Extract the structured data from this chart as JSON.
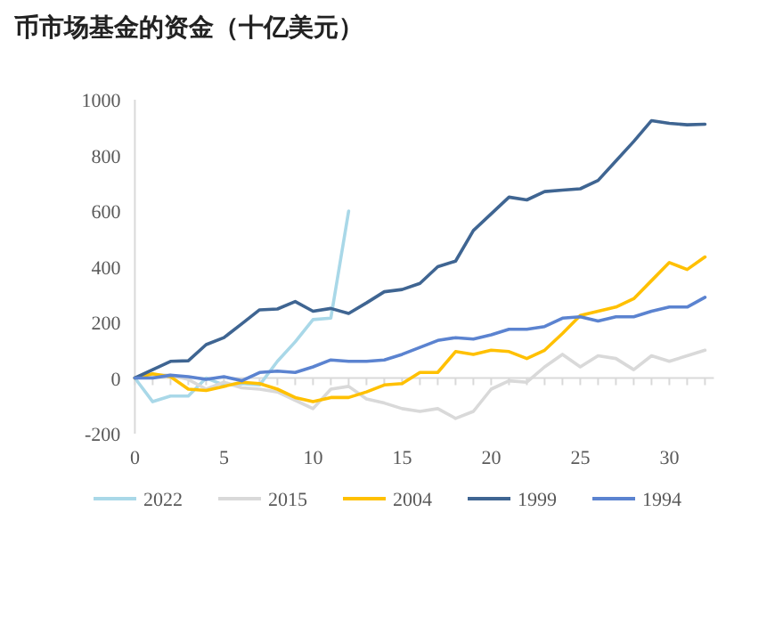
{
  "chart_data": {
    "type": "line",
    "title": "币市场基金的资金（十亿美元）",
    "x": [
      0,
      1,
      2,
      3,
      4,
      5,
      6,
      7,
      8,
      9,
      10,
      11,
      12,
      13,
      14,
      15,
      16,
      17,
      18,
      19,
      20,
      21,
      22,
      23,
      24,
      25,
      26,
      27,
      28,
      29,
      30,
      31,
      32
    ],
    "series": [
      {
        "name": "2022",
        "color": "#a9d8e8",
        "values": [
          0,
          -85,
          -65,
          -65,
          0,
          -25,
          -20,
          -25,
          60,
          130,
          210,
          215,
          600,
          null,
          null,
          null,
          null,
          null,
          null,
          null,
          null,
          null,
          null,
          null,
          null,
          null,
          null,
          null,
          null,
          null,
          null,
          null,
          null
        ]
      },
      {
        "name": "2015",
        "color": "#d9d9d9",
        "values": [
          0,
          10,
          10,
          -5,
          -40,
          -15,
          -35,
          -40,
          -50,
          -80,
          -110,
          -40,
          -30,
          -75,
          -90,
          -110,
          -120,
          -110,
          -145,
          -120,
          -40,
          -10,
          -15,
          40,
          85,
          40,
          80,
          70,
          30,
          80,
          60,
          80,
          100
        ]
      },
      {
        "name": "2004",
        "color": "#ffc000",
        "values": [
          0,
          15,
          5,
          -40,
          -45,
          -30,
          -15,
          -20,
          -40,
          -70,
          -85,
          -70,
          -70,
          -50,
          -25,
          -20,
          20,
          20,
          95,
          85,
          100,
          95,
          70,
          100,
          160,
          225,
          240,
          255,
          285,
          350,
          415,
          390,
          435
        ]
      },
      {
        "name": "1999",
        "color": "#3f6592",
        "values": [
          0,
          30,
          60,
          62,
          120,
          145,
          195,
          245,
          248,
          275,
          240,
          250,
          232,
          270,
          310,
          318,
          340,
          400,
          420,
          530,
          590,
          650,
          640,
          670,
          675,
          680,
          710,
          780,
          850,
          925,
          915,
          910,
          912
        ]
      },
      {
        "name": "1994",
        "color": "#5b83d0",
        "values": [
          0,
          0,
          10,
          5,
          -5,
          5,
          -10,
          20,
          25,
          20,
          40,
          65,
          60,
          60,
          65,
          85,
          110,
          135,
          145,
          140,
          155,
          175,
          175,
          185,
          215,
          220,
          205,
          220,
          220,
          240,
          255,
          255,
          290
        ]
      }
    ],
    "xlim": [
      0,
      32.5
    ],
    "xticks": [
      0,
      5,
      10,
      15,
      20,
      25,
      30
    ],
    "ylim": [
      -200,
      1000
    ],
    "yticks": [
      -200,
      0,
      200,
      400,
      600,
      800,
      1000
    ],
    "ref_lines": [
      {
        "axis": "y",
        "value": 0,
        "color": "#d9d9d9"
      }
    ],
    "grid": false,
    "legend": "bottom",
    "marker": "none",
    "line_style": "solid"
  }
}
